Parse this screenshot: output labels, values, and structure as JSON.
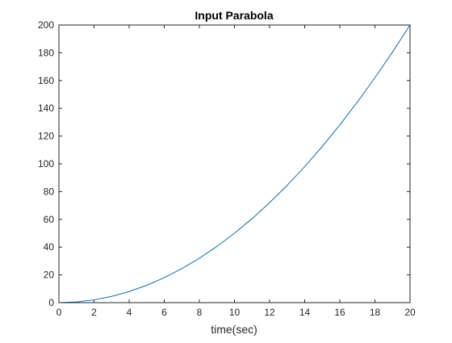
{
  "chart_data": {
    "type": "line",
    "title": "Input Parabola",
    "xlabel": "time(sec)",
    "ylabel": "",
    "xlim": [
      0,
      20
    ],
    "ylim": [
      0,
      200
    ],
    "xticks": [
      0,
      2,
      4,
      6,
      8,
      10,
      12,
      14,
      16,
      18,
      20
    ],
    "yticks": [
      0,
      20,
      40,
      60,
      80,
      100,
      120,
      140,
      160,
      180,
      200
    ],
    "xtick_labels": [
      "0",
      "2",
      "4",
      "6",
      "8",
      "10",
      "12",
      "14",
      "16",
      "18",
      "20"
    ],
    "ytick_labels": [
      "0",
      "20",
      "40",
      "60",
      "80",
      "100",
      "120",
      "140",
      "160",
      "180",
      "200"
    ],
    "grid": false,
    "legend": "none",
    "series": [
      {
        "color": "#0072bd",
        "x": [
          0,
          1,
          2,
          3,
          4,
          5,
          6,
          7,
          8,
          9,
          10,
          11,
          12,
          13,
          14,
          15,
          16,
          17,
          18,
          19,
          20
        ],
        "y": [
          0,
          0.5,
          2,
          4.5,
          8,
          12.5,
          18,
          24.5,
          32,
          40.5,
          50,
          60.5,
          72,
          84.5,
          98,
          112.5,
          128,
          144.5,
          162,
          180.5,
          200
        ]
      }
    ]
  }
}
